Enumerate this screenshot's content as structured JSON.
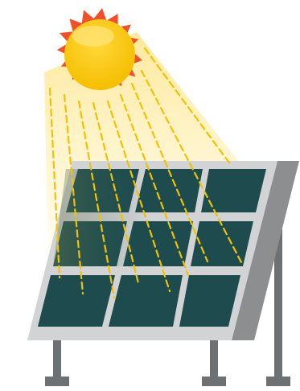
{
  "illustration": {
    "subject_icons": [
      "sun-icon",
      "solar-panel-icon",
      "sun-rays-icon"
    ],
    "colors": {
      "sun_core": "#F7C600",
      "sun_highlight": "#FFE47A",
      "sun_flare": "#F0502B",
      "light_beam": "#FFE58A",
      "ray_dash": "#F2C200",
      "panel_cell": "#1E4C4E",
      "panel_frame_light": "#D2D3D4",
      "panel_frame_dark": "#8D8E8F",
      "stand": "#6E7173"
    }
  }
}
